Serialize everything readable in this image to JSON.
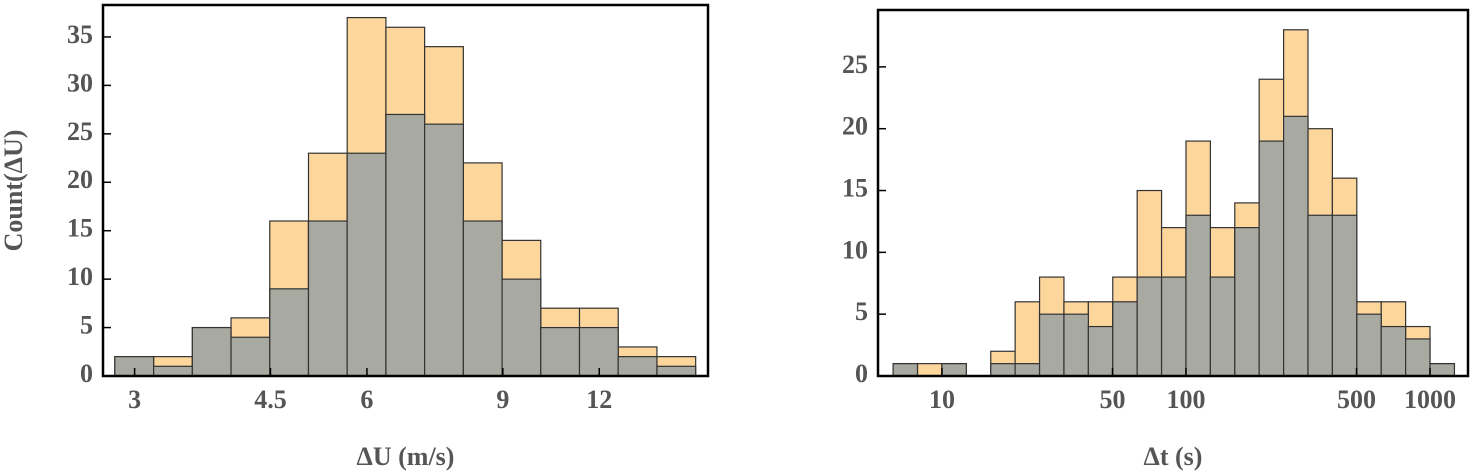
{
  "chart_data": [
    {
      "type": "histogram",
      "xlabel": "ΔU (m/s)",
      "ylabel": "Count(ΔU)",
      "xscale": "log",
      "bins": [
        2.828,
        3.175,
        3.564,
        4,
        4.49,
        5.04,
        5.657,
        6.35,
        7.127,
        8,
        8.98,
        10.079,
        11.314,
        12.699,
        14.254,
        16
      ],
      "series": [
        {
          "color": "#fdd69c",
          "values": [
            2,
            2,
            5,
            6,
            16,
            23,
            37,
            36,
            34,
            22,
            14,
            7,
            7,
            3,
            2
          ]
        },
        {
          "color": "#a8a9a0",
          "values": [
            2,
            1,
            5,
            4,
            9,
            16,
            23,
            27,
            26,
            16,
            10,
            5,
            5,
            2,
            1
          ]
        }
      ],
      "xlim": [
        2.73,
        16.6
      ],
      "xticks": [
        3,
        4.5,
        6,
        9,
        12
      ],
      "ylim": [
        0,
        38.3
      ],
      "yticks": [
        0,
        5,
        10,
        15,
        20,
        25,
        30,
        35
      ]
    },
    {
      "type": "histogram",
      "xlabel": "Δt (s)",
      "xscale": "log",
      "bins": [
        6.31,
        7.94,
        10,
        12.59,
        15.85,
        19.95,
        25.12,
        31.62,
        39.81,
        50.12,
        63.1,
        79.43,
        100,
        125.9,
        158.5,
        199.5,
        251.2,
        316.2,
        398.1,
        501.2,
        631,
        794.3,
        1000,
        1259
      ],
      "series": [
        {
          "color": "#fdd69c",
          "values": [
            1,
            1,
            1,
            0,
            2,
            6,
            8,
            6,
            6,
            8,
            15,
            12,
            19,
            12,
            14,
            24,
            28,
            20,
            16,
            6,
            6,
            4,
            1
          ]
        },
        {
          "color": "#a8a9a0",
          "values": [
            1,
            0,
            1,
            0,
            1,
            1,
            5,
            5,
            4,
            6,
            8,
            8,
            13,
            8,
            12,
            19,
            21,
            13,
            13,
            5,
            4,
            3,
            1
          ]
        }
      ],
      "xlim": [
        5.47,
        1431
      ],
      "xticks": [
        10,
        50,
        100,
        500,
        1000
      ],
      "ylim": [
        0,
        29.6
      ],
      "yticks": [
        0,
        5,
        10,
        15,
        20,
        25
      ]
    }
  ]
}
